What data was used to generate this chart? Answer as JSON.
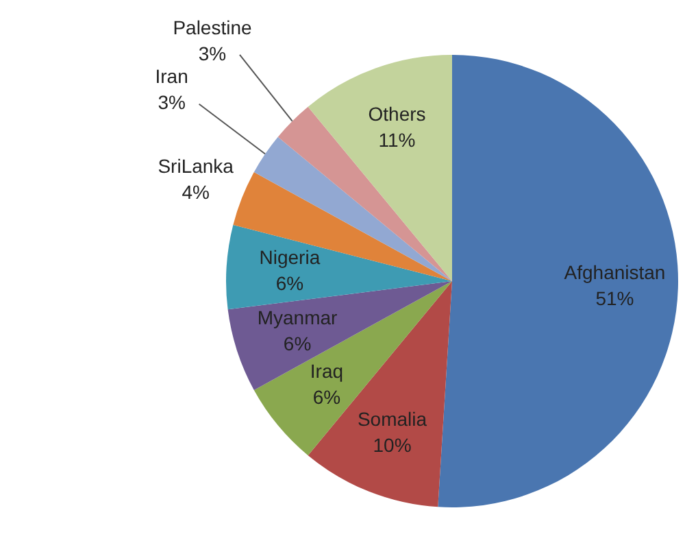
{
  "chart_data": {
    "type": "pie",
    "categories": [
      "Afghanistan",
      "Somalia",
      "Iraq",
      "Myanmar",
      "Nigeria",
      "SriLanka",
      "Iran",
      "Palestine",
      "Others"
    ],
    "values": [
      51,
      10,
      6,
      6,
      6,
      4,
      3,
      3,
      11
    ],
    "value_labels": [
      "51%",
      "10%",
      "6%",
      "6%",
      "6%",
      "4%",
      "3%",
      "3%",
      "11%"
    ],
    "colors": [
      "#4a76b0",
      "#b24a47",
      "#8aa84f",
      "#6e5a93",
      "#3e9bb3",
      "#e0833a",
      "#92a8d2",
      "#d59594",
      "#c3d39c"
    ],
    "legend": false
  }
}
